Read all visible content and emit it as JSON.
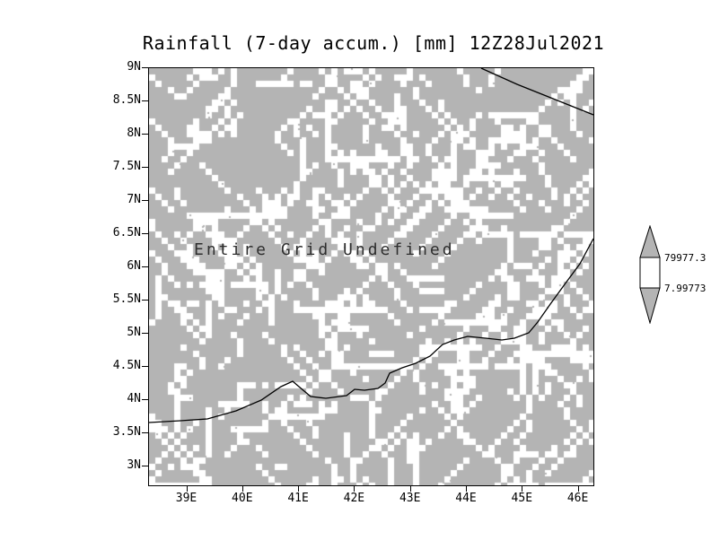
{
  "title": "Rainfall (7-day accum.) [mm] 12Z28Jul2021",
  "overlay_text": "Entire Grid Undefined",
  "y_axis": {
    "ticks": [
      "9N",
      "8.5N",
      "8N",
      "7.5N",
      "7N",
      "6.5N",
      "6N",
      "5.5N",
      "5N",
      "4.5N",
      "4N",
      "3.5N",
      "3N"
    ]
  },
  "x_axis": {
    "ticks": [
      "39E",
      "40E",
      "41E",
      "42E",
      "43E",
      "44E",
      "45E",
      "46E"
    ]
  },
  "colorbar": {
    "labels": [
      "79977.3",
      "7.99773"
    ]
  },
  "colors": {
    "grid_gray": "#b4b4b4",
    "speckle_white": "#ffffff",
    "line_black": "#000000"
  },
  "chart_data": {
    "type": "heatmap",
    "title": "Rainfall (7-day accum.) [mm] 12Z28Jul2021",
    "xlabel": "",
    "ylabel": "",
    "x_tick_labels": [
      "39E",
      "40E",
      "41E",
      "42E",
      "43E",
      "44E",
      "45E",
      "46E"
    ],
    "y_tick_labels": [
      "9N",
      "8.5N",
      "8N",
      "7.5N",
      "7N",
      "6.5N",
      "6N",
      "5.5N",
      "5N",
      "4.5N",
      "4N",
      "3.5N",
      "3N"
    ],
    "x_range_deg_east": [
      38.3,
      46.3
    ],
    "y_range_deg_north": [
      2.7,
      9.0
    ],
    "values": "undefined (entire grid undefined - no data plotted, background dither only)",
    "annotation": "Entire Grid Undefined",
    "colorbar_values": [
      79977.3,
      7.99773
    ],
    "legend_position": "right",
    "grid": false,
    "map_overlay": "coastlines (Horn of Africa region)"
  }
}
